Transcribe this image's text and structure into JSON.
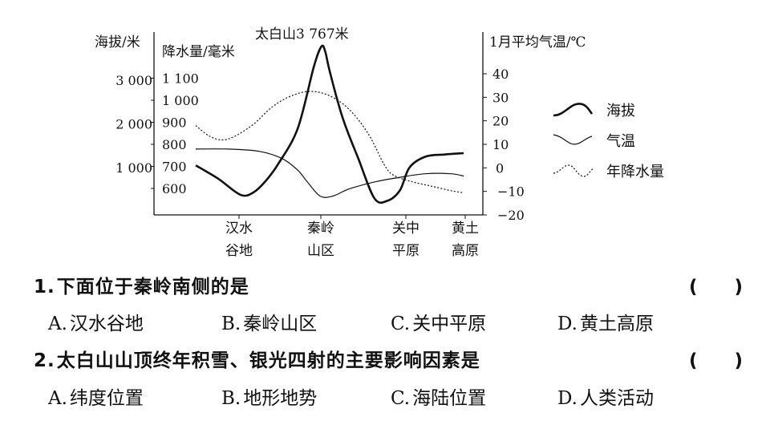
{
  "chart_data": {
    "type": "line",
    "annotation": "太白山3 767米",
    "axes": {
      "elevation": {
        "label": "海拔/米",
        "ticks": [
          {
            "v": 1000,
            "t": "1 000"
          },
          {
            "v": 2000,
            "t": "2 000"
          },
          {
            "v": 3000,
            "t": "3 000"
          }
        ],
        "range": [
          -80,
          3950
        ]
      },
      "precipitation": {
        "label": "降水量/毫米",
        "ticks": [
          {
            "v": 600,
            "t": "600"
          },
          {
            "v": 700,
            "t": "700"
          },
          {
            "v": 800,
            "t": "800"
          },
          {
            "v": 900,
            "t": "900"
          },
          {
            "v": 1000,
            "t": "1 000"
          },
          {
            "v": 1100,
            "t": "1 100"
          }
        ],
        "range": [
          480,
          1280
        ]
      },
      "temperature": {
        "label": "1月平均气温/℃",
        "ticks": [
          {
            "v": -20,
            "t": "−20"
          },
          {
            "v": -10,
            "t": "−10"
          },
          {
            "v": 0,
            "t": "0"
          },
          {
            "v": 10,
            "t": "10"
          },
          {
            "v": 20,
            "t": "20"
          },
          {
            "v": 30,
            "t": "30"
          },
          {
            "v": 40,
            "t": "40"
          }
        ],
        "range": [
          -20,
          55
        ]
      }
    },
    "regions": [
      {
        "line1": "汉水",
        "line2": "谷地"
      },
      {
        "line1": "秦岭",
        "line2": "山区"
      },
      {
        "line1": "关中",
        "line2": "平原"
      },
      {
        "line1": "黄土",
        "line2": "高原"
      }
    ],
    "x_range": [
      0,
      4.5
    ],
    "series": [
      {
        "key": "elevation",
        "name": "海拔",
        "axis": "elevation",
        "style": "thick",
        "x": [
          0.0,
          0.35,
          0.7,
          0.9,
          1.1,
          1.3,
          1.6,
          1.85,
          1.97,
          2.03,
          2.1,
          2.3,
          2.55,
          2.8,
          3.0,
          3.2,
          3.35,
          3.6,
          3.9,
          4.2
        ],
        "y": [
          1050,
          750,
          380,
          430,
          700,
          1100,
          1900,
          3300,
          3767,
          3650,
          3200,
          2150,
          1200,
          300,
          240,
          480,
          1000,
          1250,
          1300,
          1330
        ]
      },
      {
        "key": "temperature",
        "name": "气温",
        "axis": "temperature",
        "style": "thin",
        "x": [
          0.0,
          0.5,
          1.0,
          1.35,
          1.6,
          1.75,
          1.95,
          2.15,
          2.4,
          2.8,
          3.2,
          3.6,
          4.0,
          4.2
        ],
        "y": [
          8,
          8,
          7,
          4,
          -1,
          -6,
          -12,
          -12,
          -9,
          -6,
          -4,
          -2.5,
          -2.5,
          -3.5
        ]
      },
      {
        "key": "precipitation",
        "name": "年降水量",
        "axis": "precipitation",
        "style": "dotted",
        "x": [
          0.0,
          0.2,
          0.4,
          0.6,
          0.9,
          1.2,
          1.5,
          1.8,
          2.1,
          2.4,
          2.7,
          2.95,
          3.1,
          3.4,
          3.7,
          4.0,
          4.2
        ],
        "y": [
          885,
          840,
          820,
          835,
          890,
          970,
          1020,
          1040,
          1020,
          960,
          850,
          710,
          660,
          630,
          610,
          590,
          580
        ]
      }
    ],
    "legend": {
      "position": "right"
    }
  },
  "questions": [
    {
      "number": "1.",
      "text": "下面位于秦岭南侧的是",
      "paren": "(　　)",
      "options": [
        {
          "letter": "A.",
          "text": "汉水谷地"
        },
        {
          "letter": "B.",
          "text": "秦岭山区"
        },
        {
          "letter": "C.",
          "text": "关中平原"
        },
        {
          "letter": "D.",
          "text": "黄土高原"
        }
      ]
    },
    {
      "number": "2.",
      "text": "太白山山顶终年积雪、银光四射的主要影响因素是",
      "paren": "(　　)",
      "options": [
        {
          "letter": "A.",
          "text": "纬度位置"
        },
        {
          "letter": "B.",
          "text": "地形地势"
        },
        {
          "letter": "C.",
          "text": "海陆位置"
        },
        {
          "letter": "D.",
          "text": "人类活动"
        }
      ]
    }
  ]
}
